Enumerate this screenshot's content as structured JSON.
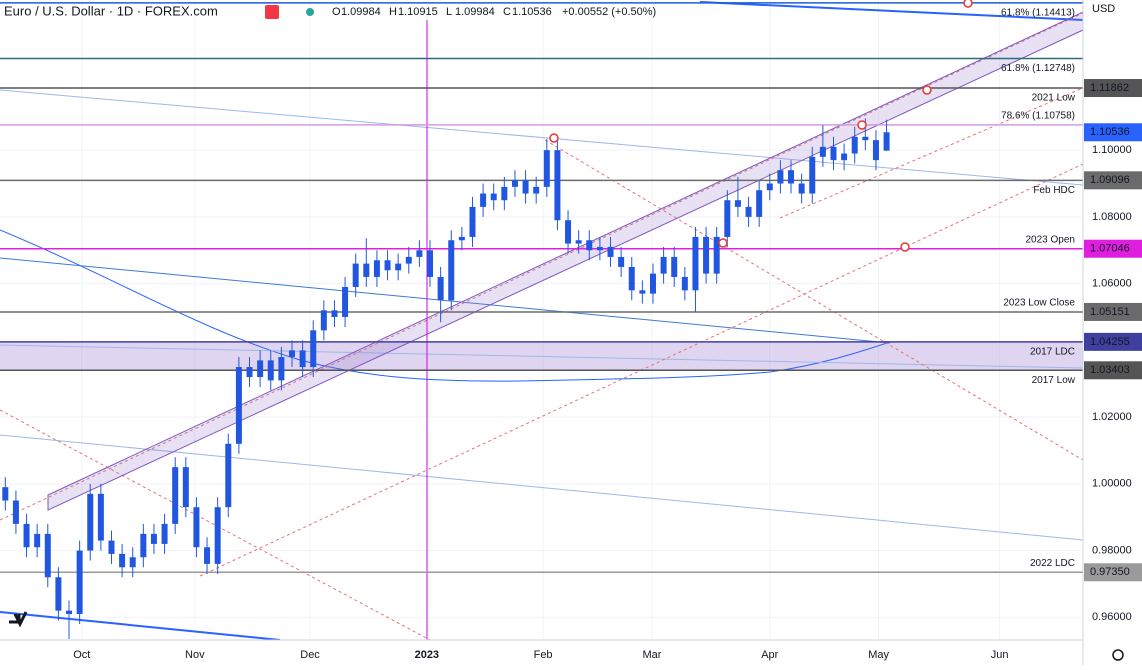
{
  "header": {
    "symbol": "Euro / U.S. Dollar · 1D · FOREX.com",
    "ohlc": [
      {
        "key": "O",
        "value": "1.09984"
      },
      {
        "key": "H",
        "value": "1.10915"
      },
      {
        "key": "L",
        "value": "1.09984"
      },
      {
        "key": "C",
        "value": "1.10536"
      }
    ],
    "change": "+0.00552 (+0.50%)",
    "currency": "USD"
  },
  "chart_data": {
    "type": "candlestick",
    "color": "#2157e0",
    "grid": true,
    "xlim": [
      0,
      204
    ],
    "ylim": [
      0.9532,
      1.145
    ],
    "xticks": [
      {
        "value": 15.4,
        "label": "Oct"
      },
      {
        "value": 36.7,
        "label": "Nov"
      },
      {
        "value": 58.4,
        "label": "Dec"
      },
      {
        "value": 80.4,
        "label": "2023"
      },
      {
        "value": 102.3,
        "label": "Feb"
      },
      {
        "value": 122.8,
        "label": "Mar"
      },
      {
        "value": 145,
        "label": "Apr"
      },
      {
        "value": 165.5,
        "label": "May"
      },
      {
        "value": 188.3,
        "label": "Jun"
      }
    ],
    "yticks": [
      {
        "value": 0.96,
        "label": "0.96000"
      },
      {
        "value": 0.98,
        "label": "0.98000"
      },
      {
        "value": 1.0,
        "label": "1.00000"
      },
      {
        "value": 1.02,
        "label": "1.02000"
      },
      {
        "value": 1.06,
        "label": "1.06000"
      },
      {
        "value": 1.08,
        "label": "1.08000"
      },
      {
        "value": 1.1,
        "label": "1.10000"
      }
    ],
    "x": [
      1,
      3,
      5,
      7,
      9,
      11,
      13,
      15,
      17,
      19,
      21,
      23,
      25,
      27,
      29,
      31,
      33,
      35,
      37,
      39,
      41,
      43,
      45,
      47,
      49,
      51,
      53,
      55,
      57,
      59,
      61,
      63,
      65,
      67,
      69,
      71,
      73,
      75,
      77,
      79,
      81,
      83,
      85,
      87,
      89,
      91,
      93,
      95,
      97,
      99,
      101,
      103,
      105,
      107,
      109,
      111,
      113,
      115,
      117,
      119,
      121,
      123,
      125,
      127,
      129,
      131,
      133,
      135,
      137,
      139,
      141,
      143,
      145,
      147,
      149,
      151,
      153,
      155,
      157,
      159,
      161,
      163,
      165,
      167
    ],
    "open": [
      0.999,
      0.995,
      0.988,
      0.981,
      0.985,
      0.972,
      0.962,
      0.961,
      0.98,
      0.997,
      0.983,
      0.979,
      0.975,
      0.978,
      0.985,
      0.982,
      0.988,
      1.005,
      0.993,
      0.981,
      0.976,
      0.993,
      1.012,
      1.035,
      1.032,
      1.037,
      1.031,
      1.038,
      1.04,
      1.035,
      1.046,
      1.052,
      1.05,
      1.059,
      1.066,
      1.062,
      1.067,
      1.064,
      1.066,
      1.068,
      1.07,
      1.062,
      1.055,
      1.073,
      1.074,
      1.083,
      1.087,
      1.085,
      1.089,
      1.091,
      1.087,
      1.089,
      1.1,
      1.079,
      1.072,
      1.073,
      1.07,
      1.071,
      1.068,
      1.065,
      1.058,
      1.057,
      1.063,
      1.068,
      1.062,
      1.058,
      1.074,
      1.063,
      1.074,
      1.085,
      1.083,
      1.08,
      1.088,
      1.09,
      1.094,
      1.09,
      1.087,
      1.098,
      1.101,
      1.097,
      1.099,
      1.104,
      1.103,
      1.09984
    ],
    "high": [
      1.002,
      0.998,
      0.991,
      0.988,
      0.988,
      0.975,
      0.965,
      0.983,
      1.0,
      1.0,
      0.986,
      0.982,
      0.981,
      0.988,
      0.988,
      0.991,
      1.008,
      1.008,
      0.996,
      0.984,
      0.996,
      1.015,
      1.038,
      1.038,
      1.04,
      1.04,
      1.041,
      1.043,
      1.043,
      1.049,
      1.055,
      1.055,
      1.062,
      1.069,
      1.0736,
      1.07,
      1.07,
      1.069,
      1.071,
      1.073,
      1.073,
      1.065,
      1.076,
      1.077,
      1.086,
      1.09,
      1.09,
      1.092,
      1.094,
      1.094,
      1.092,
      1.1033,
      1.103,
      1.082,
      1.076,
      1.076,
      1.074,
      1.074,
      1.071,
      1.068,
      1.061,
      1.066,
      1.071,
      1.071,
      1.065,
      1.077,
      1.077,
      1.077,
      1.088,
      1.092,
      1.086,
      1.091,
      1.093,
      1.097,
      1.097,
      1.093,
      1.101,
      1.1075,
      1.104,
      1.102,
      1.107,
      1.1095,
      1.106,
      1.10915
    ],
    "low": [
      0.992,
      0.985,
      0.978,
      0.978,
      0.969,
      0.959,
      0.9535,
      0.958,
      0.977,
      0.98,
      0.976,
      0.972,
      0.972,
      0.975,
      0.979,
      0.979,
      0.985,
      0.99,
      0.978,
      0.973,
      0.973,
      0.99,
      1.009,
      1.029,
      1.029,
      1.028,
      1.028,
      1.035,
      1.032,
      1.032,
      1.043,
      1.047,
      1.047,
      1.056,
      1.059,
      1.059,
      1.061,
      1.061,
      1.063,
      1.065,
      1.059,
      1.0484,
      1.052,
      1.07,
      1.071,
      1.08,
      1.082,
      1.082,
      1.086,
      1.084,
      1.084,
      1.086,
      1.076,
      1.069,
      1.069,
      1.067,
      1.067,
      1.065,
      1.062,
      1.055,
      1.054,
      1.054,
      1.06,
      1.059,
      1.055,
      1.0516,
      1.06,
      1.06,
      1.071,
      1.08,
      1.077,
      1.077,
      1.085,
      1.087,
      1.087,
      1.084,
      1.084,
      1.095,
      1.094,
      1.094,
      1.096,
      1.1,
      1.094,
      1.09984
    ],
    "close": [
      0.995,
      0.988,
      0.981,
      0.985,
      0.972,
      0.962,
      0.961,
      0.98,
      0.997,
      0.983,
      0.979,
      0.975,
      0.978,
      0.985,
      0.982,
      0.988,
      1.005,
      0.993,
      0.981,
      0.976,
      0.993,
      1.012,
      1.035,
      1.032,
      1.037,
      1.031,
      1.038,
      1.04,
      1.035,
      1.046,
      1.052,
      1.05,
      1.059,
      1.066,
      1.062,
      1.067,
      1.064,
      1.066,
      1.068,
      1.07,
      1.062,
      1.055,
      1.073,
      1.074,
      1.083,
      1.087,
      1.085,
      1.089,
      1.091,
      1.087,
      1.089,
      1.1,
      1.079,
      1.072,
      1.073,
      1.07,
      1.071,
      1.068,
      1.065,
      1.058,
      1.057,
      1.063,
      1.068,
      1.062,
      1.058,
      1.074,
      1.063,
      1.074,
      1.085,
      1.083,
      1.08,
      1.088,
      1.09,
      1.094,
      1.09,
      1.087,
      1.098,
      1.101,
      1.097,
      1.099,
      1.104,
      1.103,
      1.097,
      1.10536
    ],
    "last_price_color": "#2962ff",
    "levels": [
      {
        "name": "61.8% (1.14413)",
        "value": 1.14413,
        "color": "#1c5ed6",
        "text_color": "#2b6e7a",
        "boxed": false,
        "label_side": "below"
      },
      {
        "name": "61.8% (1.12748)",
        "value": 1.12748,
        "color": "#2b6e7a",
        "text_color": "#2b6e7a",
        "boxed": false,
        "label_side": "below"
      },
      {
        "name": "2021 Low",
        "value": 1.11862,
        "color": "#555555",
        "text_color": "#555555",
        "boxed": true,
        "label_side": "below"
      },
      {
        "name": "78.6% (1.10758)",
        "value": 1.10758,
        "color": "#d59be0",
        "text_color": "#c17ccf",
        "boxed": false,
        "label_side": "above"
      },
      {
        "name": "Feb HDC",
        "value": 1.09096,
        "color": "#6b6b6b",
        "text_color": "#777777",
        "boxed": true,
        "label_side": "below"
      },
      {
        "name": "2023 Open",
        "value": 1.07046,
        "color": "#e01ee0",
        "text_color": "#e01ee0",
        "boxed": true,
        "label_side": "above"
      },
      {
        "name": "2023 Low Close",
        "value": 1.05151,
        "color": "#6b6b6b",
        "text_color": "#777777",
        "boxed": true,
        "label_side": "above"
      },
      {
        "name": "2017 LDC",
        "value": 1.04255,
        "color": "#3f3fa0",
        "text_color": "#b0b0c8",
        "boxed": true,
        "label_side": "below",
        "band_color": "#9575cd"
      },
      {
        "name": "2017 Low",
        "value": 1.03403,
        "color": "#555555",
        "text_color": "#777777",
        "boxed": true,
        "label_side": "below"
      },
      {
        "name": "2022 LDC",
        "value": 0.9735,
        "value_label": "0.97350",
        "color": "#9a9a9a",
        "text_color": "#777777",
        "boxed": true,
        "label_side": "above"
      }
    ]
  }
}
